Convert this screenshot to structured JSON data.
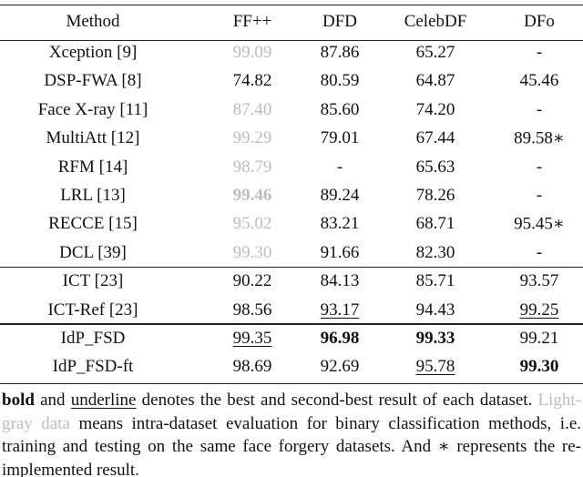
{
  "table": {
    "header": [
      "Method",
      "FF++",
      "DFD",
      "CelebDF",
      "DFo"
    ],
    "groups": [
      [
        [
          {
            "text": "Xception [9]"
          },
          {
            "text": "99.09",
            "style": "gray"
          },
          {
            "text": "87.86"
          },
          {
            "text": "65.27"
          },
          {
            "text": "-"
          }
        ],
        [
          {
            "text": "DSP-FWA [8]"
          },
          {
            "text": "74.82"
          },
          {
            "text": "80.59"
          },
          {
            "text": "64.87"
          },
          {
            "text": "45.46"
          }
        ],
        [
          {
            "text": "Face X-ray [11]"
          },
          {
            "text": "87.40",
            "style": "gray"
          },
          {
            "text": "85.60"
          },
          {
            "text": "74.20"
          },
          {
            "text": "-"
          }
        ],
        [
          {
            "text": "MultiAtt [12]"
          },
          {
            "text": "99.29",
            "style": "gray"
          },
          {
            "text": "79.01"
          },
          {
            "text": "67.44"
          },
          {
            "text": "89.58∗"
          }
        ],
        [
          {
            "text": "RFM [14]"
          },
          {
            "text": "98.79",
            "style": "gray"
          },
          {
            "text": "-"
          },
          {
            "text": "65.63"
          },
          {
            "text": "-"
          }
        ],
        [
          {
            "text": "LRL [13]"
          },
          {
            "text": "99.46",
            "style": "gray-bold"
          },
          {
            "text": "89.24"
          },
          {
            "text": "78.26"
          },
          {
            "text": "-"
          }
        ],
        [
          {
            "text": "RECCE [15]"
          },
          {
            "text": "95.02",
            "style": "gray"
          },
          {
            "text": "83.21"
          },
          {
            "text": "68.71"
          },
          {
            "text": "95.45∗"
          }
        ],
        [
          {
            "text": "DCL [39]"
          },
          {
            "text": "99.30",
            "style": "gray"
          },
          {
            "text": "91.66"
          },
          {
            "text": "82.30"
          },
          {
            "text": "-"
          }
        ]
      ],
      [
        [
          {
            "text": "ICT [23]"
          },
          {
            "text": "90.22"
          },
          {
            "text": "84.13"
          },
          {
            "text": "85.71"
          },
          {
            "text": "93.57"
          }
        ],
        [
          {
            "text": "ICT-Ref [23]"
          },
          {
            "text": "98.56"
          },
          {
            "text": "93.17",
            "style": "underline"
          },
          {
            "text": "94.43"
          },
          {
            "text": "99.25",
            "style": "underline"
          }
        ]
      ],
      [
        [
          {
            "text": "IdP_FSD"
          },
          {
            "text": "99.35",
            "style": "underline"
          },
          {
            "text": "96.98",
            "style": "bold"
          },
          {
            "text": "99.33",
            "style": "bold"
          },
          {
            "text": "99.21"
          }
        ],
        [
          {
            "text": "IdP_FSD-ft"
          },
          {
            "text": "98.69"
          },
          {
            "text": "92.69"
          },
          {
            "text": "95.78",
            "style": "underline"
          },
          {
            "text": "99.30",
            "style": "bold"
          }
        ]
      ]
    ]
  },
  "note": [
    {
      "text": "bold",
      "style": "bold"
    },
    {
      "text": " and "
    },
    {
      "text": "underline",
      "style": "underline"
    },
    {
      "text": " denotes the best and second-best result of each dataset. "
    },
    {
      "text": "Light-gray data",
      "style": "gray"
    },
    {
      "text": " means intra-dataset evaluation for binary classification methods, i.e. training and testing on the same face forgery datasets. And ∗ represents the re-implemented result."
    }
  ]
}
